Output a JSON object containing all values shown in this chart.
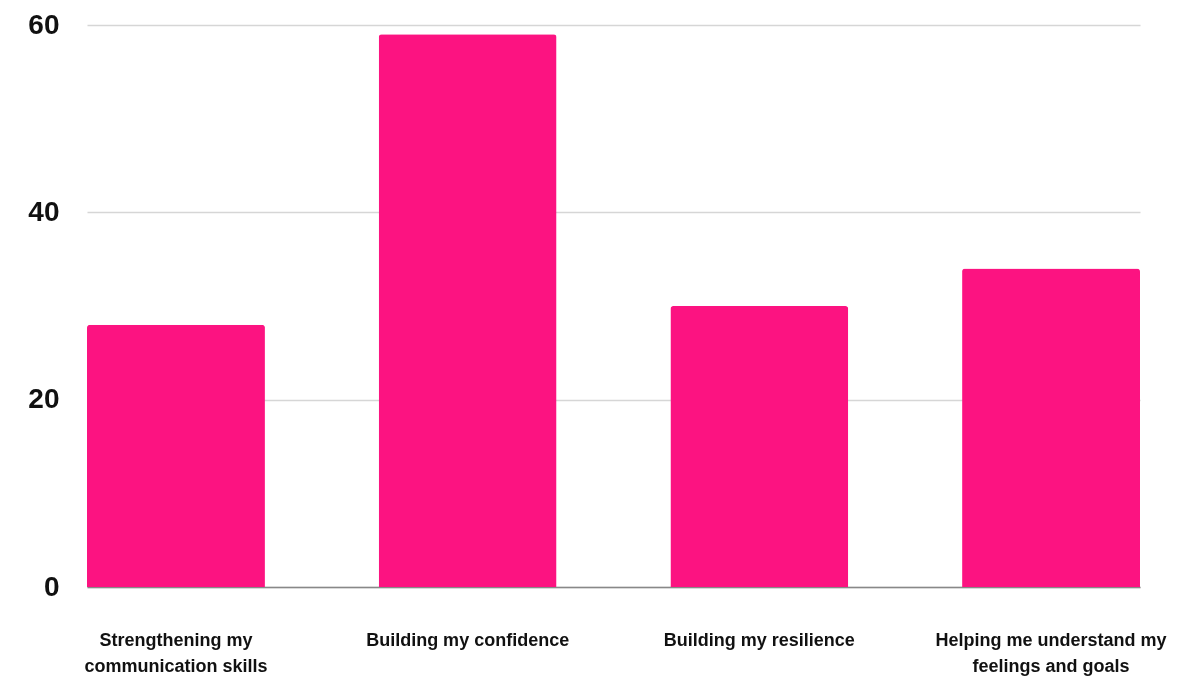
{
  "chart_data": {
    "type": "bar",
    "categories": [
      "Strengthening my communication skills",
      "Building my confidence",
      "Building my resilience",
      "Helping me understand my feelings and goals"
    ],
    "values": [
      28,
      59,
      30,
      34
    ],
    "color": "#fc1381",
    "ylim": [
      0,
      60
    ],
    "yticks": [
      0,
      20,
      40,
      60
    ],
    "grid": "y"
  }
}
